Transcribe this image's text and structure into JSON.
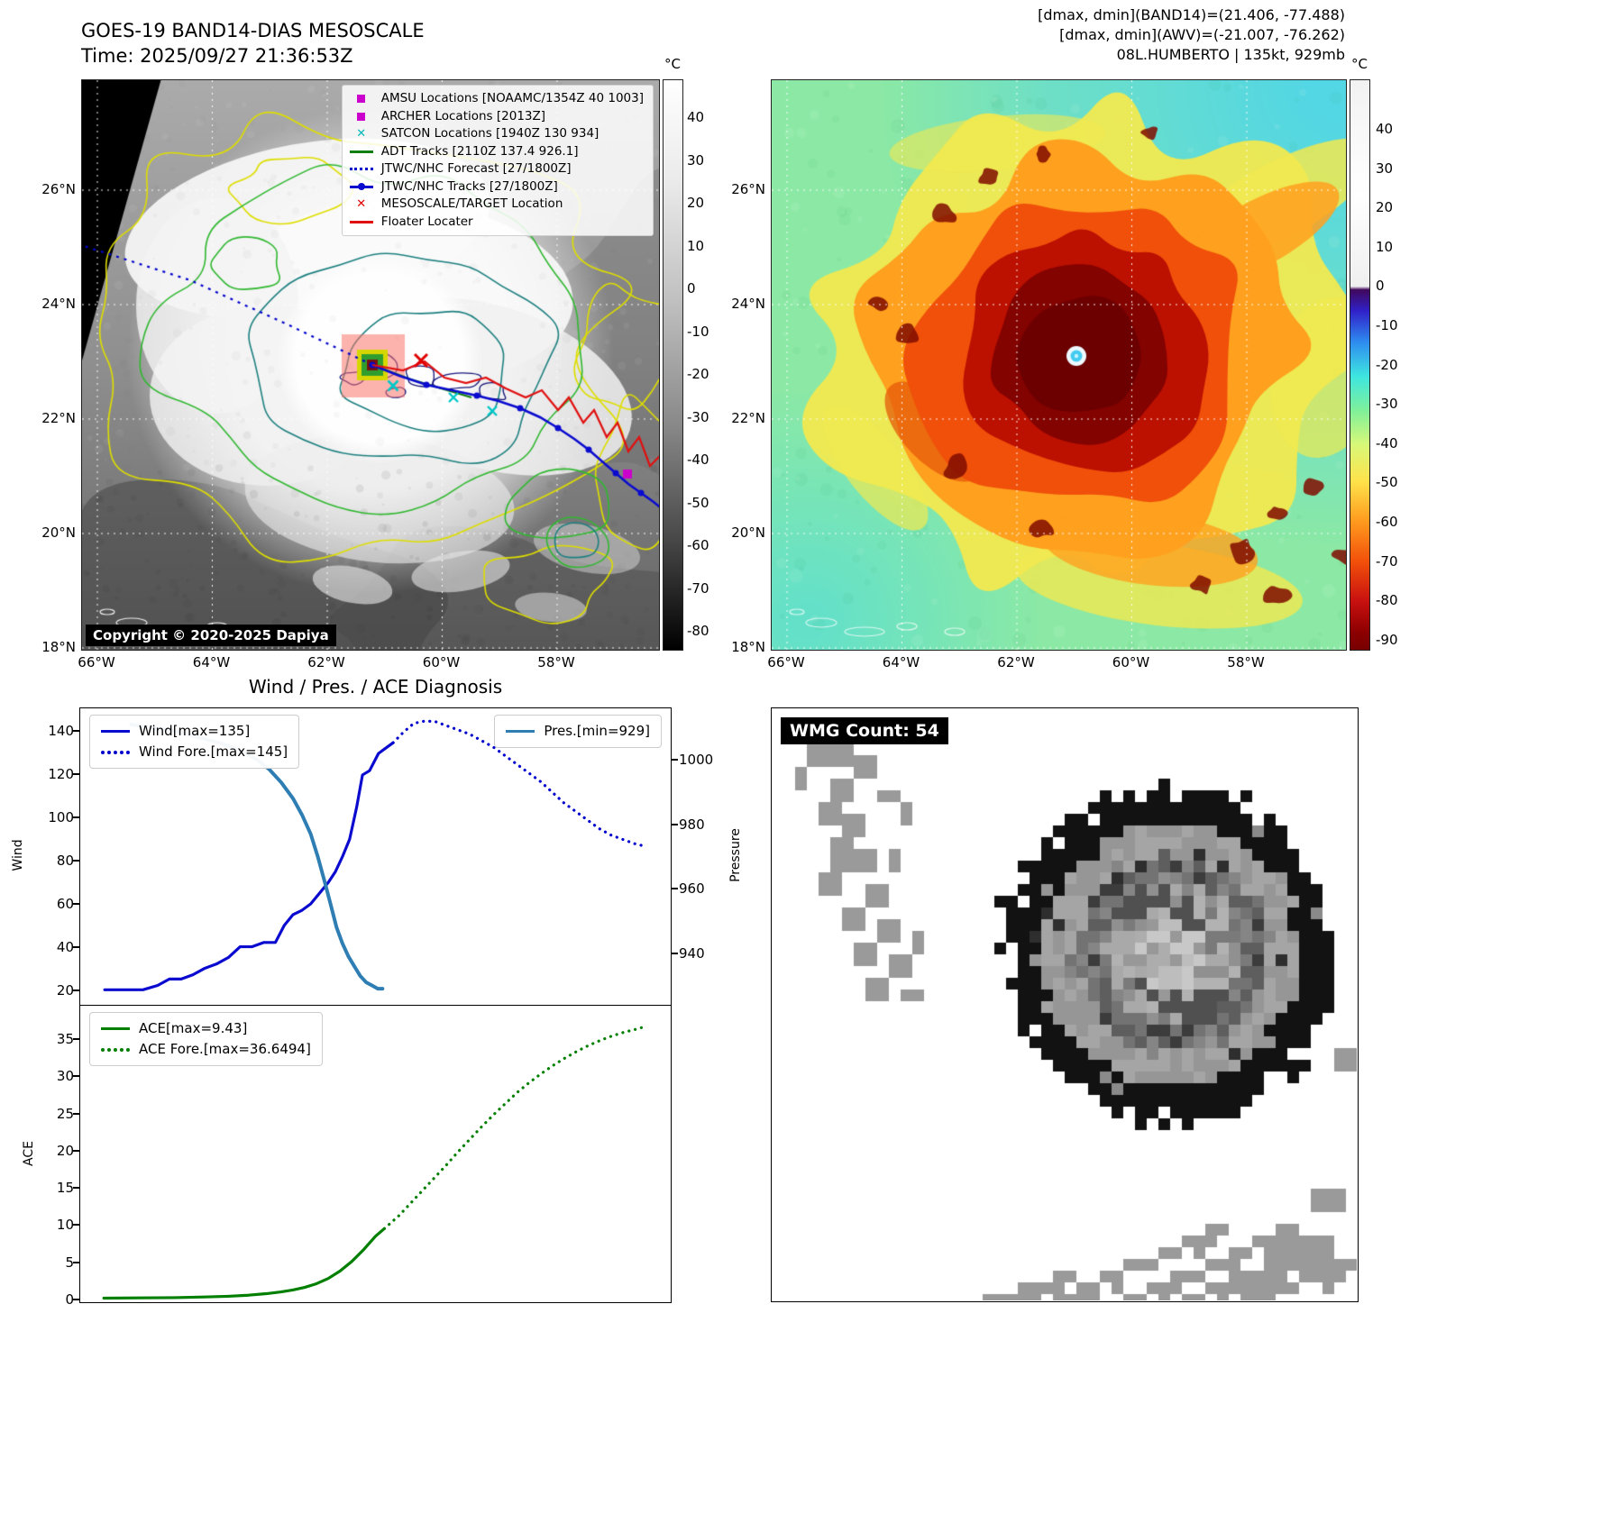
{
  "tl": {
    "title": "GOES-19 BAND14-DIAS MESOSCALE",
    "subtitle": "Time: 2025/09/27 21:36:53Z",
    "unit": "°C",
    "colorbar_ticks": [
      "40",
      "30",
      "20",
      "10",
      "0",
      "-10",
      "-20",
      "-30",
      "-40",
      "-50",
      "-60",
      "-70",
      "-80"
    ],
    "lat_labels": [
      "26°N",
      "24°N",
      "22°N",
      "20°N",
      "18°N"
    ],
    "lon_labels": [
      "66°W",
      "64°W",
      "62°W",
      "60°W",
      "58°W"
    ],
    "copyright": "Copyright © 2020-2025 Dapiya",
    "legend": [
      {
        "marker": "square",
        "color": "#cc00cc",
        "label": "AMSU Locations [NOAAMC/1354Z 40 1003]"
      },
      {
        "marker": "square",
        "color": "#cc00cc",
        "label": "ARCHER Locations [2013Z]"
      },
      {
        "marker": "x",
        "color": "#00b8b8",
        "label": "SATCON Locations [1940Z 130 934]"
      },
      {
        "marker": "line",
        "color": "#0f7d0f",
        "label": "ADT Tracks [2110Z 137.4 926.1]"
      },
      {
        "marker": "dotted",
        "color": "#0000cd",
        "label": "JTWC/NHC Forecast [27/1800Z]"
      },
      {
        "marker": "linedot",
        "color": "#0b0bd0",
        "label": "JTWC/NHC Tracks [27/1800Z]"
      },
      {
        "marker": "x",
        "color": "#e00000",
        "label": "MESOSCALE/TARGET Location"
      },
      {
        "marker": "line",
        "color": "#e01010",
        "label": "Floater Locater"
      }
    ]
  },
  "tr": {
    "header_lines": [
      "[dmax, dmin](BAND14)=(21.406, -77.488)",
      "[dmax, dmin](AWV)=(-21.007, -76.262)",
      "08L.HUMBERTO | 135kt, 929mb"
    ],
    "unit": "°C",
    "colorbar_ticks": [
      "40",
      "30",
      "20",
      "10",
      "0",
      "-10",
      "-20",
      "-30",
      "-40",
      "-50",
      "-60",
      "-70",
      "-80",
      "-90"
    ],
    "lat_labels": [
      "26°N",
      "24°N",
      "22°N",
      "20°N",
      "18°N"
    ],
    "lon_labels": [
      "66°W",
      "64°W",
      "62°W",
      "60°W",
      "58°W"
    ]
  },
  "charts": {
    "title": "Wind / Pres. / ACE Diagnosis",
    "wind_ylabel": "Wind",
    "pressure_ylabel": "Pressure",
    "ace_ylabel": "ACE",
    "legend_wind": "Wind[max=135]",
    "legend_wind_fore": "Wind Fore.[max=145]",
    "legend_pres": "Pres.[min=929]",
    "legend_ace": "ACE[max=9.43]",
    "legend_ace_fore": "ACE Fore.[max=36.6494]"
  },
  "br": {
    "label": "WMG Count: 54"
  },
  "chart_data": [
    {
      "type": "line",
      "title": "Wind / Pres. / ACE Diagnosis",
      "x_range": [
        0,
        1
      ],
      "left_axis": {
        "label": "Wind",
        "lim": [
          13,
          151
        ],
        "ticks": [
          20,
          40,
          60,
          80,
          100,
          120,
          140
        ]
      },
      "right_axis": {
        "label": "Pressure",
        "lim": [
          924,
          1016
        ],
        "ticks": [
          940,
          960,
          980,
          1000
        ]
      },
      "series": [
        {
          "name": "Wind[max=135]",
          "axis": "left",
          "style": "solid",
          "color": "#0b0bd0",
          "x": [
            0.04,
            0.075,
            0.105,
            0.13,
            0.15,
            0.17,
            0.19,
            0.21,
            0.23,
            0.25,
            0.27,
            0.29,
            0.31,
            0.33,
            0.345,
            0.36,
            0.375,
            0.39,
            0.405,
            0.42,
            0.432,
            0.444,
            0.456,
            0.468,
            0.478,
            0.49,
            0.505,
            0.52,
            0.53
          ],
          "y": [
            20,
            20,
            20,
            22,
            25,
            25,
            27,
            30,
            32,
            35,
            40,
            40,
            42,
            42,
            50,
            55,
            57,
            60,
            65,
            70,
            75,
            82,
            90,
            105,
            120,
            122,
            130,
            133,
            135
          ]
        },
        {
          "name": "Wind Fore.[max=145]",
          "axis": "left",
          "style": "dotted",
          "color": "#0000cd",
          "x": [
            0.53,
            0.548,
            0.565,
            0.582,
            0.6,
            0.62,
            0.64,
            0.66,
            0.68,
            0.7,
            0.72,
            0.74,
            0.76,
            0.78,
            0.8,
            0.82,
            0.84,
            0.86,
            0.88,
            0.9,
            0.92,
            0.94,
            0.955
          ],
          "y": [
            135,
            140,
            144,
            145,
            145,
            143,
            141,
            139,
            136,
            133,
            129,
            125,
            121,
            117,
            112,
            107,
            103,
            99,
            95,
            92,
            90,
            88,
            87
          ]
        },
        {
          "name": "Pres.[min=929]",
          "axis": "right",
          "style": "solid",
          "color": "#2e7eb3",
          "x": [
            0.085,
            0.12,
            0.16,
            0.2,
            0.24,
            0.27,
            0.3,
            0.32,
            0.34,
            0.36,
            0.375,
            0.39,
            0.402,
            0.414,
            0.424,
            0.434,
            0.444,
            0.454,
            0.464,
            0.474,
            0.484,
            0.494,
            0.504,
            0.512
          ],
          "y": [
            1011,
            1010,
            1009,
            1007,
            1005,
            1003,
            1000,
            997,
            993,
            988,
            983,
            977,
            970,
            962,
            955,
            948,
            943,
            939,
            936,
            933,
            931,
            930,
            929,
            929
          ]
        }
      ]
    },
    {
      "type": "line",
      "x_range": [
        0,
        1
      ],
      "left_axis": {
        "label": "ACE",
        "lim": [
          -0.5,
          39.5
        ],
        "ticks": [
          0,
          5,
          10,
          15,
          20,
          25,
          30,
          35
        ]
      },
      "series": [
        {
          "name": "ACE[max=9.43]",
          "axis": "left",
          "style": "solid",
          "color": "#007f00",
          "x": [
            0.04,
            0.1,
            0.16,
            0.21,
            0.25,
            0.285,
            0.315,
            0.34,
            0.36,
            0.38,
            0.4,
            0.42,
            0.44,
            0.46,
            0.48,
            0.5,
            0.515
          ],
          "y": [
            0.05,
            0.08,
            0.12,
            0.2,
            0.3,
            0.45,
            0.65,
            0.9,
            1.15,
            1.5,
            2.0,
            2.7,
            3.7,
            5.0,
            6.6,
            8.4,
            9.43
          ]
        },
        {
          "name": "ACE Fore.[max=36.6494]",
          "axis": "left",
          "style": "dotted",
          "color": "#007f00",
          "x": [
            0.515,
            0.54,
            0.56,
            0.58,
            0.6,
            0.62,
            0.64,
            0.66,
            0.68,
            0.7,
            0.72,
            0.74,
            0.76,
            0.78,
            0.8,
            0.82,
            0.84,
            0.86,
            0.88,
            0.9,
            0.92,
            0.94,
            0.955
          ],
          "y": [
            9.43,
            11.2,
            12.9,
            14.6,
            16.3,
            18.0,
            19.8,
            21.5,
            23.2,
            24.8,
            26.3,
            27.8,
            29.1,
            30.3,
            31.4,
            32.4,
            33.3,
            34.1,
            34.8,
            35.4,
            35.9,
            36.3,
            36.65
          ]
        }
      ]
    }
  ]
}
